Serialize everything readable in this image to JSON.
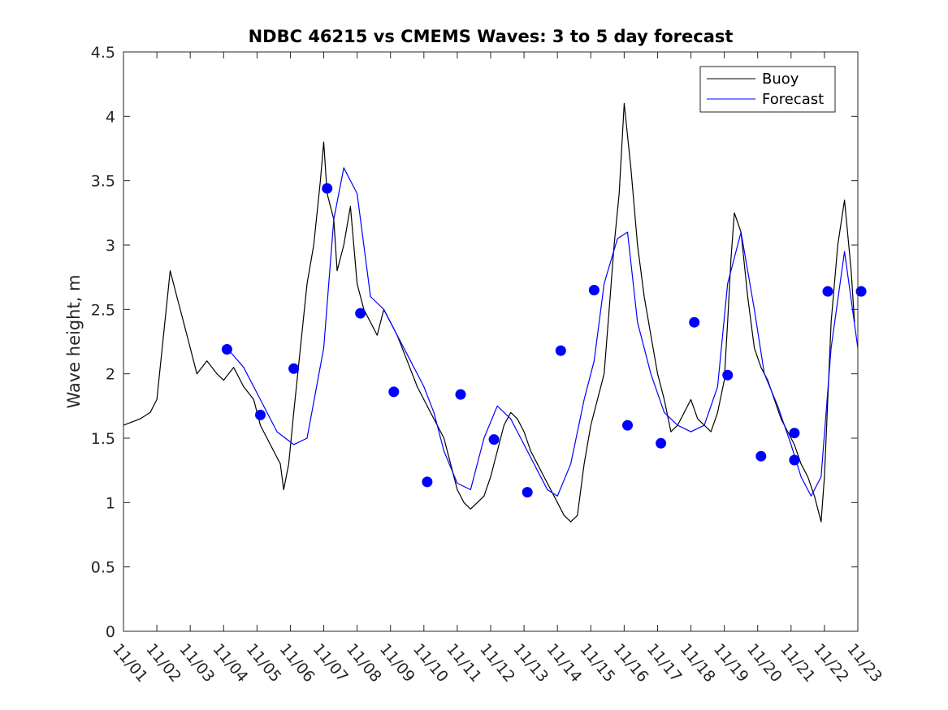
{
  "chart_data": {
    "type": "line",
    "title": "NDBC 46215 vs CMEMS Waves: 3 to 5 day forecast",
    "xlabel": "",
    "ylabel": "Wave height, m",
    "ylim": [
      0,
      4.5
    ],
    "xlim": [
      0,
      22
    ],
    "yticks": [
      0,
      0.5,
      1,
      1.5,
      2,
      2.5,
      3,
      3.5,
      4,
      4.5
    ],
    "ytick_labels": [
      "0",
      "0.5",
      "1",
      "1.5",
      "2",
      "2.5",
      "3",
      "3.5",
      "4",
      "4.5"
    ],
    "xticks": [
      0,
      1,
      2,
      3,
      4,
      5,
      6,
      7,
      8,
      9,
      10,
      11,
      12,
      13,
      14,
      15,
      16,
      17,
      18,
      19,
      20,
      21,
      22
    ],
    "xtick_labels": [
      "11/01",
      "11/02",
      "11/03",
      "11/04",
      "11/05",
      "11/06",
      "11/07",
      "11/08",
      "11/09",
      "11/10",
      "11/11",
      "11/12",
      "11/13",
      "11/14",
      "11/15",
      "11/16",
      "11/17",
      "11/18",
      "11/19",
      "11/20",
      "11/21",
      "11/22",
      "11/23"
    ],
    "legend": {
      "location": "top-right",
      "entries": [
        "Buoy",
        "Forecast"
      ]
    },
    "colors": {
      "buoy": "#000000",
      "forecast": "#0000ff",
      "markers": "#0000ff"
    },
    "series": [
      {
        "name": "Buoy",
        "color": "#000000",
        "x": [
          0,
          0.5,
          0.8,
          1,
          1.2,
          1.4,
          1.6,
          1.8,
          2,
          2.2,
          2.5,
          2.8,
          3,
          3.3,
          3.6,
          3.9,
          4.1,
          4.3,
          4.5,
          4.7,
          4.8,
          4.95,
          5.1,
          5.3,
          5.5,
          5.7,
          5.9,
          6,
          6.1,
          6.3,
          6.4,
          6.6,
          6.8,
          7,
          7.2,
          7.4,
          7.6,
          7.8,
          8,
          8.2,
          8.5,
          8.8,
          9,
          9.2,
          9.4,
          9.6,
          9.8,
          10,
          10.2,
          10.4,
          10.6,
          10.8,
          11,
          11.2,
          11.4,
          11.6,
          11.8,
          12,
          12.2,
          12.4,
          12.6,
          12.8,
          13,
          13.2,
          13.4,
          13.6,
          13.8,
          14,
          14.2,
          14.4,
          14.55,
          14.7,
          14.85,
          15,
          15.2,
          15.4,
          15.6,
          15.8,
          16,
          16.2,
          16.4,
          16.6,
          16.8,
          17,
          17.2,
          17.4,
          17.6,
          17.8,
          18,
          18.1,
          18.2,
          18.3,
          18.5,
          18.7,
          18.9,
          19.1,
          19.3,
          19.5,
          19.7,
          19.9,
          20.1,
          20.3,
          20.5,
          20.7,
          20.9,
          21,
          21.1,
          21.2,
          21.4,
          21.6,
          21.8,
          21.9
        ],
        "y": [
          1.6,
          1.65,
          1.7,
          1.8,
          2.3,
          2.8,
          2.6,
          2.4,
          2.2,
          2,
          2.1,
          2,
          1.95,
          2.05,
          1.9,
          1.8,
          1.6,
          1.5,
          1.4,
          1.3,
          1.1,
          1.3,
          1.7,
          2.2,
          2.7,
          3.0,
          3.5,
          3.8,
          3.4,
          3.2,
          2.8,
          3.0,
          3.3,
          2.7,
          2.5,
          2.4,
          2.3,
          2.5,
          2.4,
          2.3,
          2.1,
          1.9,
          1.8,
          1.7,
          1.6,
          1.5,
          1.3,
          1.1,
          1.0,
          0.95,
          1.0,
          1.05,
          1.2,
          1.4,
          1.6,
          1.7,
          1.65,
          1.55,
          1.4,
          1.3,
          1.2,
          1.1,
          1.0,
          0.9,
          0.85,
          0.9,
          1.3,
          1.6,
          1.8,
          2.0,
          2.5,
          3.0,
          3.4,
          4.1,
          3.6,
          3.0,
          2.6,
          2.3,
          2.0,
          1.8,
          1.55,
          1.6,
          1.7,
          1.8,
          1.65,
          1.6,
          1.55,
          1.7,
          1.95,
          2.4,
          2.9,
          3.25,
          3.1,
          2.6,
          2.2,
          2.05,
          1.95,
          1.8,
          1.65,
          1.55,
          1.45,
          1.3,
          1.2,
          1.05,
          0.85,
          1.2,
          1.8,
          2.4,
          3.0,
          3.35,
          2.8,
          2.4
        ]
      },
      {
        "name": "Forecast",
        "color": "#0000ff",
        "x": [
          3.1,
          3.6,
          4.1,
          4.6,
          5.1,
          5.5,
          6.0,
          6.3,
          6.6,
          7.0,
          7.4,
          7.8,
          8.2,
          8.6,
          9.0,
          9.3,
          9.6,
          10.0,
          10.4,
          10.8,
          11.2,
          11.6,
          12.0,
          12.4,
          12.7,
          13.0,
          13.4,
          13.8,
          14.1,
          14.4,
          14.8,
          15.1,
          15.4,
          15.8,
          16.2,
          16.6,
          17.0,
          17.4,
          17.8,
          18.1,
          18.5,
          18.9,
          19.2,
          19.6,
          20.0,
          20.3,
          20.6,
          20.9,
          21.2,
          21.6,
          22.0
        ],
        "y": [
          2.2,
          2.05,
          1.8,
          1.55,
          1.45,
          1.5,
          2.2,
          3.2,
          3.6,
          3.4,
          2.6,
          2.5,
          2.3,
          2.1,
          1.9,
          1.7,
          1.4,
          1.15,
          1.1,
          1.5,
          1.75,
          1.65,
          1.45,
          1.25,
          1.1,
          1.05,
          1.3,
          1.8,
          2.1,
          2.7,
          3.05,
          3.1,
          2.4,
          2.0,
          1.7,
          1.6,
          1.55,
          1.6,
          1.9,
          2.7,
          3.1,
          2.5,
          2.0,
          1.75,
          1.45,
          1.2,
          1.05,
          1.2,
          2.2,
          2.95,
          2.2
        ]
      }
    ],
    "markers": {
      "name": "Forecast day-3 points",
      "x": [
        3.1,
        4.1,
        5.1,
        6.1,
        7.1,
        8.1,
        9.1,
        10.1,
        11.1,
        12.1,
        13.1,
        14.1,
        15.1,
        16.1,
        17.1,
        18.1,
        19.1,
        20.1,
        20.1,
        21.1,
        22.1
      ],
      "y": [
        2.19,
        1.68,
        2.04,
        3.44,
        2.47,
        1.86,
        1.16,
        1.84,
        1.49,
        1.08,
        2.18,
        2.65,
        1.6,
        1.46,
        2.4,
        1.99,
        1.36,
        1.33,
        1.54,
        2.64,
        2.64
      ]
    }
  }
}
